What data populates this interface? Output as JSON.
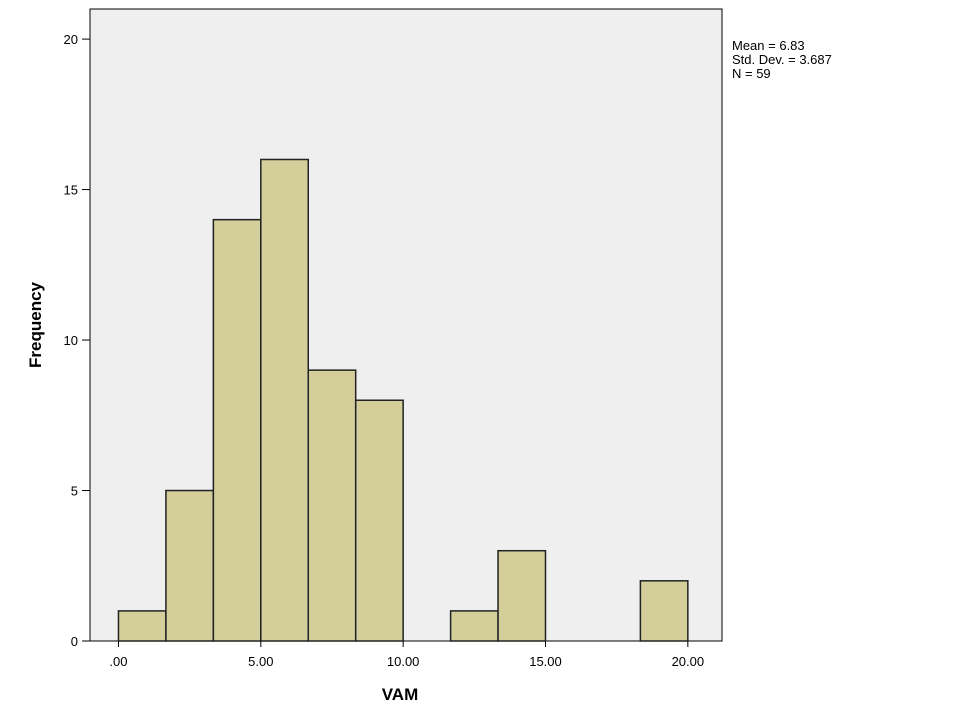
{
  "chart_data": {
    "type": "bar",
    "subtype": "histogram",
    "xlabel": "VAM",
    "ylabel": "Frequency",
    "bin_width": 1.6667,
    "bins": [
      {
        "start": 0.0,
        "end": 1.6667,
        "count": 1
      },
      {
        "start": 1.6667,
        "end": 3.3333,
        "count": 5
      },
      {
        "start": 3.3333,
        "end": 5.0,
        "count": 14
      },
      {
        "start": 5.0,
        "end": 6.6667,
        "count": 16
      },
      {
        "start": 6.6667,
        "end": 8.3333,
        "count": 9
      },
      {
        "start": 8.3333,
        "end": 10.0,
        "count": 8
      },
      {
        "start": 10.0,
        "end": 11.6667,
        "count": 0
      },
      {
        "start": 11.6667,
        "end": 13.3333,
        "count": 1
      },
      {
        "start": 13.3333,
        "end": 15.0,
        "count": 3
      },
      {
        "start": 15.0,
        "end": 16.6667,
        "count": 0
      },
      {
        "start": 16.6667,
        "end": 18.3333,
        "count": 0
      },
      {
        "start": 18.3333,
        "end": 20.0,
        "count": 2
      }
    ],
    "xlim": [
      -1.0,
      21.2
    ],
    "ylim": [
      0,
      21
    ],
    "x_ticks": [
      0,
      5,
      10,
      15,
      20
    ],
    "x_tick_labels": [
      ".00",
      "5.00",
      "10.00",
      "15.00",
      "20.00"
    ],
    "y_ticks": [
      0,
      5,
      10,
      15,
      20
    ],
    "y_tick_labels": [
      "0",
      "5",
      "10",
      "15",
      "20"
    ],
    "grid": false,
    "colors": {
      "bar_fill": "#d3ce9a",
      "bar_stroke": "#222222",
      "plot_background": "#efefef"
    },
    "stats": {
      "mean": "Mean = 6.83",
      "std_dev": "Std. Dev. = 3.687",
      "n": "N = 59"
    }
  }
}
